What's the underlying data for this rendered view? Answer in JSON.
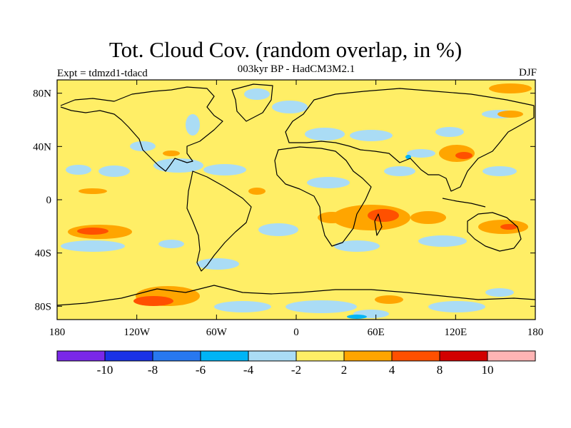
{
  "map": {
    "title": "Tot. Cloud Cov. (random overlap, in %)",
    "subtitle": "003kyr BP - HadCM3M2.1",
    "experiment_label": "Expt = tdmzd1-tdacd",
    "season_label": "DJF",
    "projection": "equirectangular",
    "lon_range": [
      -180,
      180
    ],
    "lat_range": [
      -90,
      90
    ],
    "background_color": "#ffee66",
    "coastline_color": "#000000",
    "y_ticks": [
      "80N",
      "40N",
      "0",
      "40S",
      "80S"
    ],
    "x_ticks": [
      "180",
      "120W",
      "60W",
      "0",
      "60E",
      "120E",
      "180"
    ]
  },
  "colorbar": {
    "colors": [
      "#7a28e8",
      "#1a32e6",
      "#2878f0",
      "#00b4f5",
      "#aadcf5",
      "#ffee66",
      "#ffa500",
      "#ff5000",
      "#d20000",
      "#ffb4b4"
    ],
    "labels": [
      "-10",
      "-8",
      "-6",
      "-4",
      "-2",
      "2",
      "4",
      "8",
      "10"
    ]
  }
}
